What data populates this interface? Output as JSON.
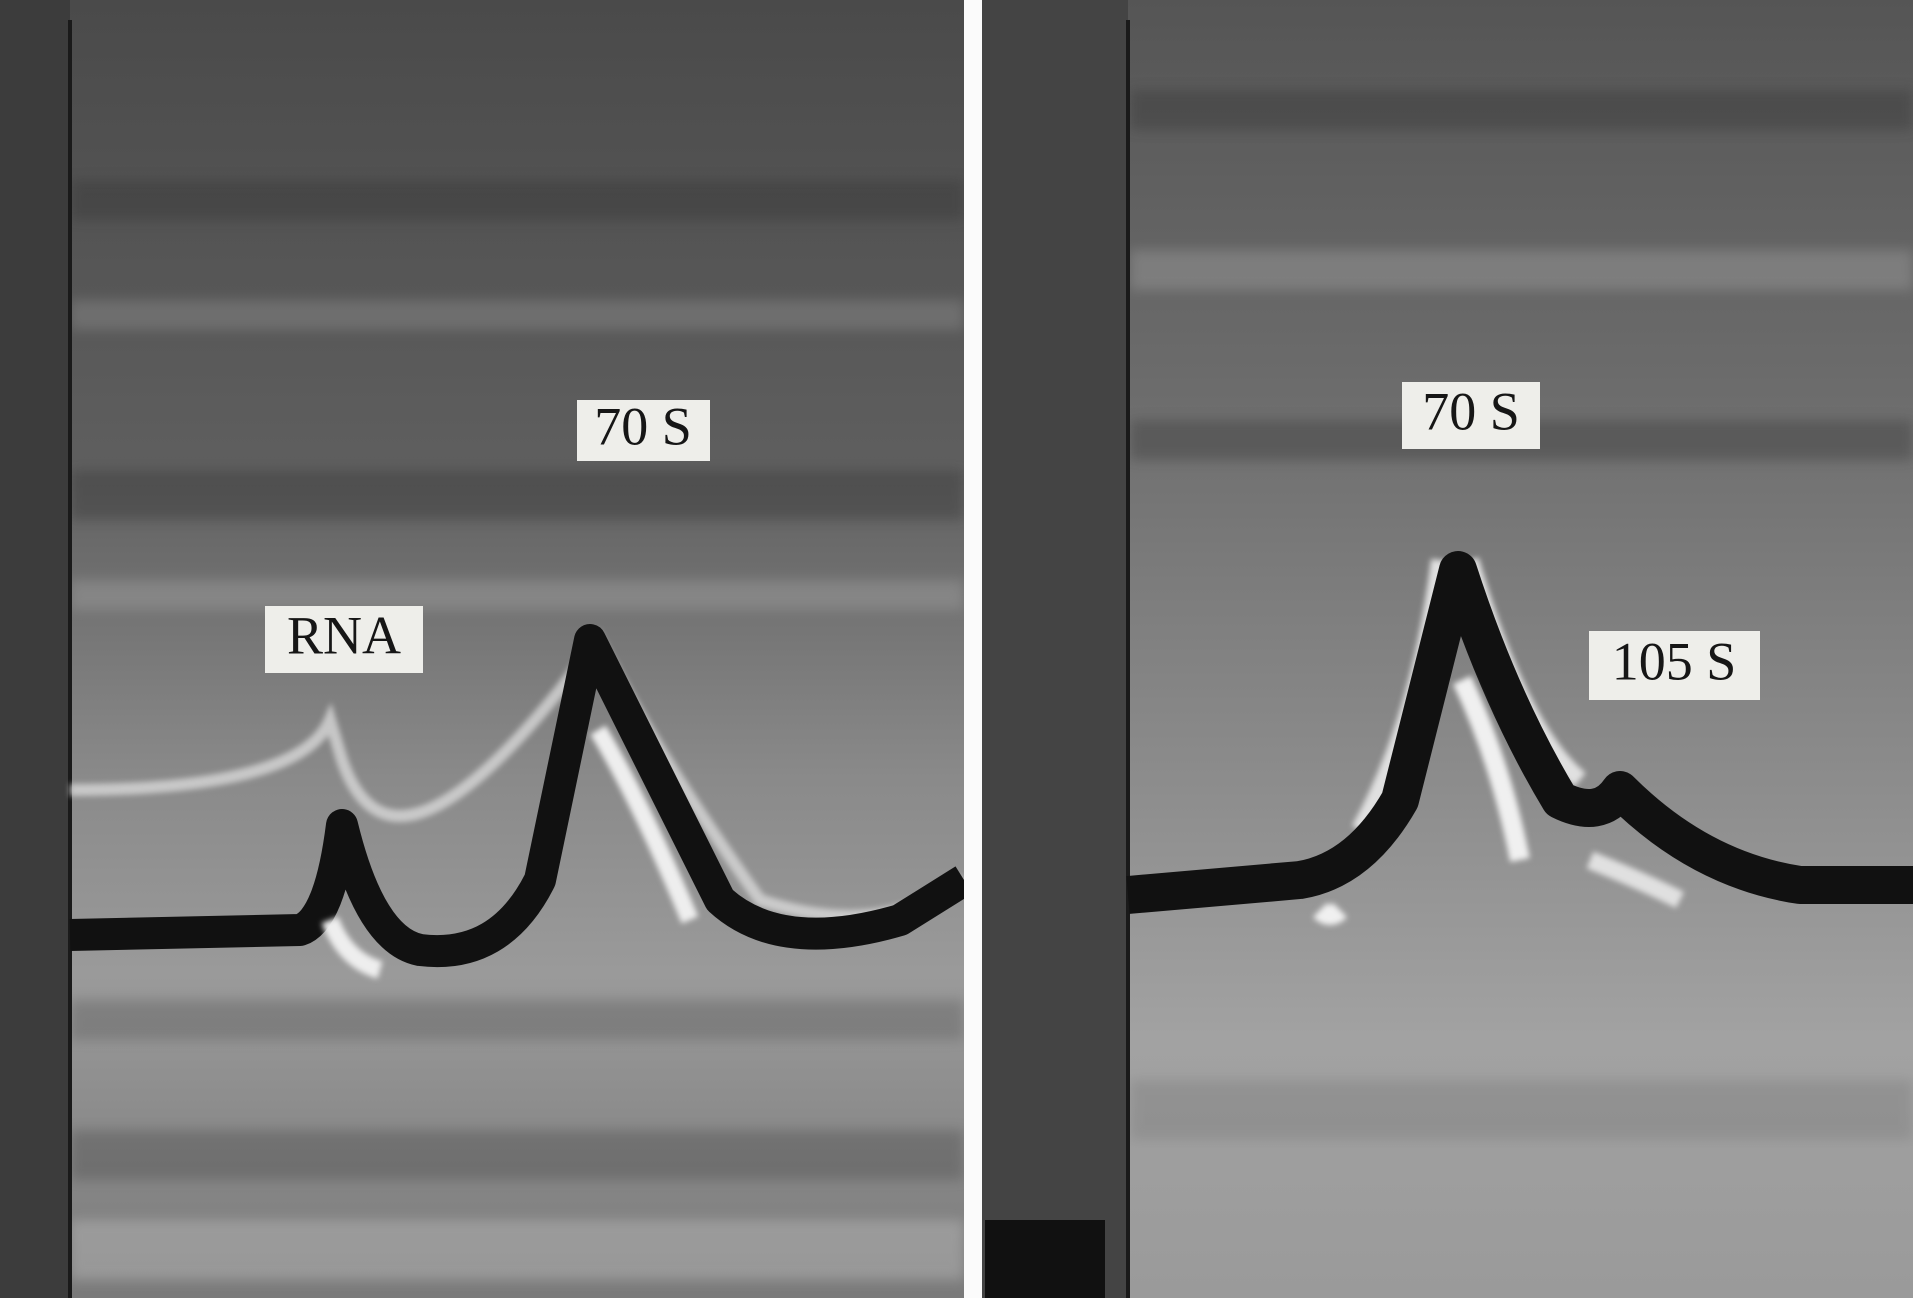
{
  "panels": [
    {
      "labels": [
        "70 S",
        "RNA"
      ]
    },
    {
      "labels": [
        "70 S",
        "105 S"
      ]
    }
  ]
}
